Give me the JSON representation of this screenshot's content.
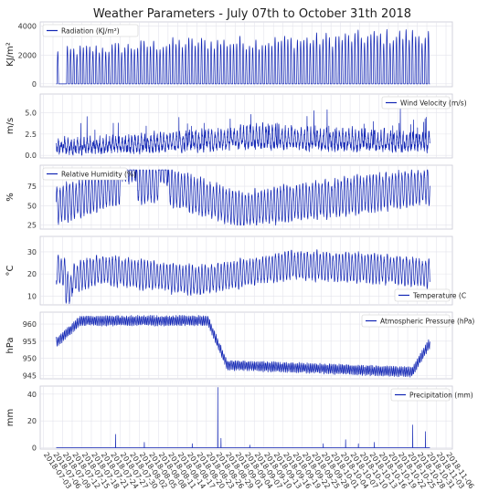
{
  "title": "Weather Parameters - July 07th to October 31th 2018",
  "colors": {
    "series": "#1226b4",
    "panel_bg": "#ffffff",
    "grid": "#e4e4ec",
    "frame": "#c9c9d6",
    "legend_border": "#cccccc"
  },
  "chart_data": [
    {
      "type": "line",
      "series": [
        {
          "name": "Radiation  (KJ/m²)"
        }
      ],
      "ylabel": "KJ/m²",
      "ylim": [
        -200,
        4300
      ],
      "yticks": [
        0,
        2000,
        4000
      ],
      "ytick_labels": [
        "0",
        "2000",
        "4000"
      ],
      "legend": "top-left",
      "grid": true,
      "pattern": "daily cycle 0 to ~2500-3400, gap near start, peaks to ~4000 in late October",
      "key_points": [
        {
          "x": "2018-07-07",
          "y": 2500
        },
        {
          "x": "2018-07-12",
          "y": 2700
        },
        {
          "x": "2018-08-15",
          "y": 3300
        },
        {
          "x": "2018-09-10",
          "y": 3400
        },
        {
          "x": "2018-10-30",
          "y": 4000
        }
      ]
    },
    {
      "type": "line",
      "series": [
        {
          "name": "Wind Velocity (m/s)"
        }
      ],
      "ylabel": "m/s",
      "ylim": [
        -0.3,
        7.2
      ],
      "yticks": [
        0.0,
        2.5,
        5.0
      ],
      "ytick_labels": [
        "0.0",
        "2.5",
        "5.0"
      ],
      "legend": "top-right",
      "grid": true,
      "pattern": "hourly variation 0 to ~5 m/s, peaks to ~6",
      "key_points": [
        {
          "x": "2018-07-09",
          "y": 3.0
        },
        {
          "x": "2018-08-30",
          "y": 5.5
        },
        {
          "x": "2018-09-02",
          "y": 6.3
        },
        {
          "x": "2018-10-20",
          "y": 4.8
        }
      ]
    },
    {
      "type": "line",
      "series": [
        {
          "name": "Relative Humidity (%)"
        }
      ],
      "ylabel": "%",
      "ylim": [
        20,
        102
      ],
      "yticks": [
        25,
        50,
        75
      ],
      "ytick_labels": [
        "25",
        "50",
        "75"
      ],
      "legend": "top-left",
      "grid": true,
      "pattern": "daily cycle between ~30% and ~90%, several saturated periods near 95%",
      "key_points": [
        {
          "x": "2018-07-07",
          "y": 40
        },
        {
          "x": "2018-07-28",
          "y": 95
        },
        {
          "x": "2018-08-09",
          "y": 95
        },
        {
          "x": "2018-09-02",
          "y": 30
        },
        {
          "x": "2018-10-31",
          "y": 90
        }
      ]
    },
    {
      "type": "line",
      "series": [
        {
          "name": "Temperature (C"
        }
      ],
      "ylabel": "°C",
      "ylim": [
        6,
        37
      ],
      "yticks": [
        10,
        20,
        30
      ],
      "ytick_labels": [
        "10",
        "20",
        "30"
      ],
      "legend": "bottom-right",
      "grid": true,
      "pattern": "daily cycle ~12-30 °C, cool dip around Aug 20, warmer spikes mid-September",
      "key_points": [
        {
          "x": "2018-07-07",
          "y": 26
        },
        {
          "x": "2018-07-10",
          "y": 8
        },
        {
          "x": "2018-08-20",
          "y": 12
        },
        {
          "x": "2018-09-18",
          "y": 34
        },
        {
          "x": "2018-10-31",
          "y": 20
        }
      ]
    },
    {
      "type": "line",
      "series": [
        {
          "name": "Atmospheric Pressure  (hPa)"
        }
      ],
      "ylabel": "hPa",
      "ylim": [
        944,
        963.5
      ],
      "yticks": [
        945,
        950,
        955,
        960
      ],
      "ytick_labels": [
        "945",
        "950",
        "955",
        "960"
      ],
      "legend": "top-right",
      "grid": true,
      "pattern": "slowly varying ~950-961 hPa with daily ripple; sharp drop around Aug 28",
      "key_points": [
        {
          "x": "2018-07-07",
          "y": 955
        },
        {
          "x": "2018-07-14",
          "y": 961
        },
        {
          "x": "2018-08-23",
          "y": 961
        },
        {
          "x": "2018-08-29",
          "y": 948
        },
        {
          "x": "2018-10-26",
          "y": 946
        },
        {
          "x": "2018-10-31",
          "y": 954
        }
      ]
    },
    {
      "type": "line",
      "series": [
        {
          "name": "Precipitation  (mm)"
        }
      ],
      "ylabel": "mm",
      "ylim": [
        -1,
        46
      ],
      "yticks": [
        0,
        20,
        40
      ],
      "ytick_labels": [
        "0",
        "20",
        "40"
      ],
      "legend": "top-right",
      "grid": true,
      "pattern": "mostly zero with isolated rain events",
      "key_points": [
        {
          "x": "2018-07-25",
          "y": 10
        },
        {
          "x": "2018-08-03",
          "y": 4
        },
        {
          "x": "2018-08-26",
          "y": 45
        },
        {
          "x": "2018-10-05",
          "y": 6
        },
        {
          "x": "2018-10-26",
          "y": 17
        },
        {
          "x": "2018-10-30",
          "y": 12
        }
      ]
    }
  ],
  "x_axis": {
    "range": [
      "2018-07-02",
      "2018-11-08"
    ],
    "tick_labels": [
      "2018-07-03",
      "2018-07-06",
      "2018-07-09",
      "2018-07-12",
      "2018-07-15",
      "2018-07-18",
      "2018-07-21",
      "2018-07-24",
      "2018-07-27",
      "2018-07-30",
      "2018-08-02",
      "2018-08-05",
      "2018-08-08",
      "2018-08-11",
      "2018-08-14",
      "2018-08-17",
      "2018-08-20",
      "2018-08-23",
      "2018-08-26",
      "2018-08-29",
      "2018-09-01",
      "2018-09-04",
      "2018-09-07",
      "2018-09-10",
      "2018-09-13",
      "2018-09-16",
      "2018-09-19",
      "2018-09-22",
      "2018-09-25",
      "2018-09-28",
      "2018-10-01",
      "2018-10-04",
      "2018-10-07",
      "2018-10-10",
      "2018-10-13",
      "2018-10-16",
      "2018-10-19",
      "2018-10-22",
      "2018-10-25",
      "2018-10-28",
      "2018-10-31",
      "2018-11-03",
      "2018-11-06"
    ]
  }
}
